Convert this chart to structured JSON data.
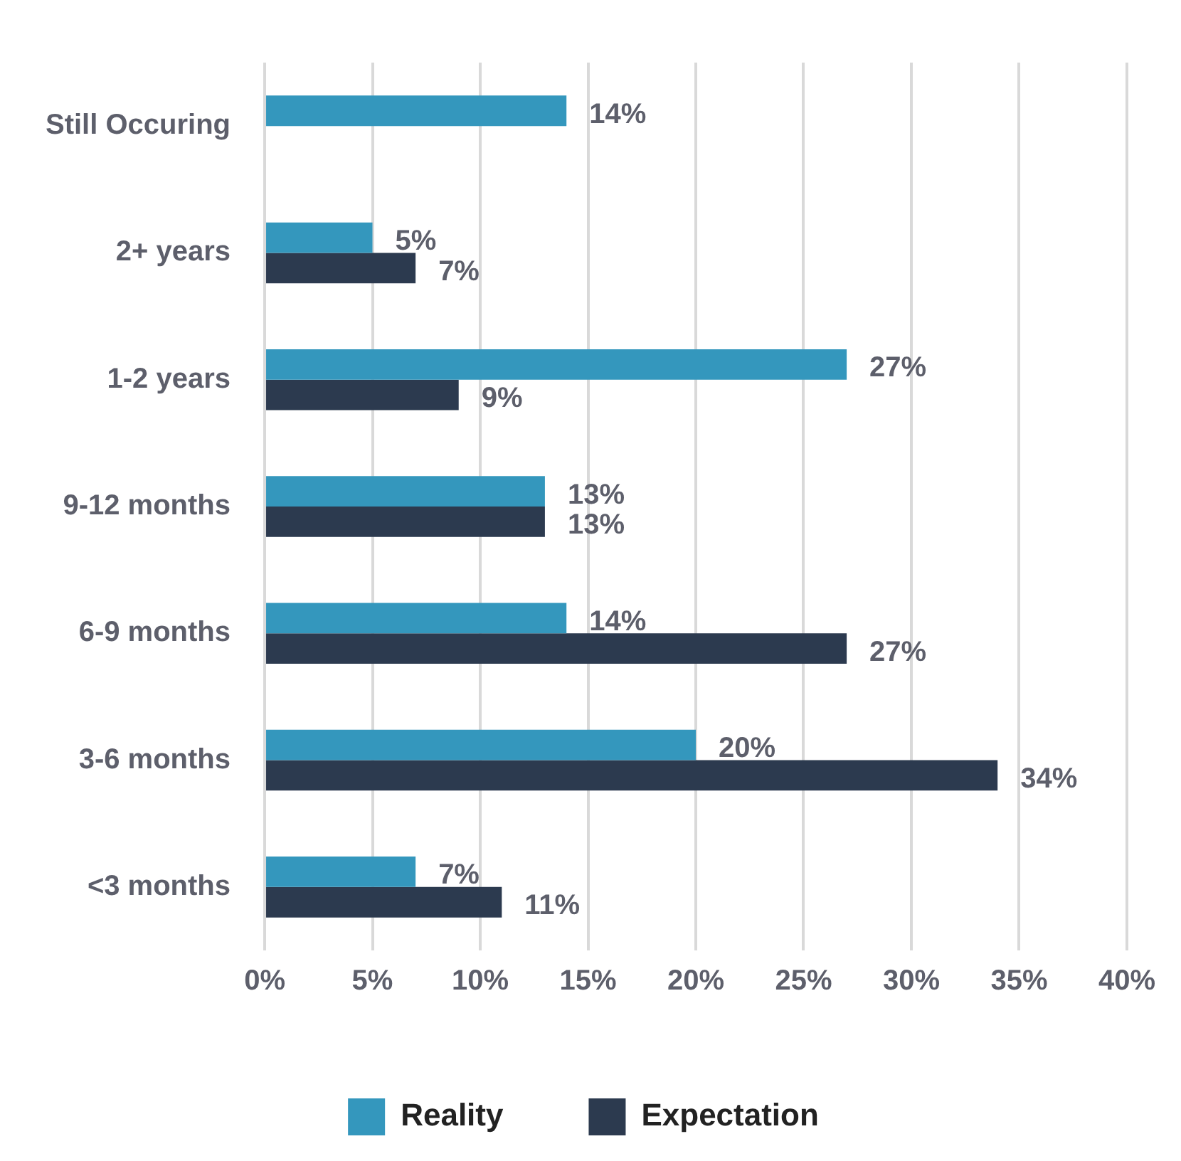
{
  "chart_data": {
    "type": "bar",
    "orientation": "horizontal",
    "categories": [
      "Still Occuring",
      "2+ years",
      "1-2 years",
      "9-12 months",
      "6-9 months",
      "3-6 months",
      "<3 months"
    ],
    "series": [
      {
        "name": "Reality",
        "color": "#3497bd",
        "values": [
          14,
          5,
          27,
          13,
          14,
          20,
          7
        ],
        "value_labels": [
          "14%",
          "5%",
          "27%",
          "13%",
          "14%",
          "20%",
          "7%"
        ]
      },
      {
        "name": "Expectation",
        "color": "#2c3a4f",
        "values": [
          null,
          7,
          9,
          13,
          27,
          34,
          11
        ],
        "value_labels": [
          null,
          "7%",
          "9%",
          "13%",
          "27%",
          "34%",
          "11%"
        ]
      }
    ],
    "xlim": [
      0,
      40
    ],
    "xticks": [
      {
        "value": 0,
        "label": "0%"
      },
      {
        "value": 5,
        "label": "5%"
      },
      {
        "value": 10,
        "label": "10%"
      },
      {
        "value": 15,
        "label": "15%"
      },
      {
        "value": 20,
        "label": "20%"
      },
      {
        "value": 25,
        "label": "25%"
      },
      {
        "value": 30,
        "label": "30%"
      },
      {
        "value": 35,
        "label": "35%"
      },
      {
        "value": 40,
        "label": "40%"
      }
    ],
    "grid": "x",
    "legend": "bottom"
  }
}
